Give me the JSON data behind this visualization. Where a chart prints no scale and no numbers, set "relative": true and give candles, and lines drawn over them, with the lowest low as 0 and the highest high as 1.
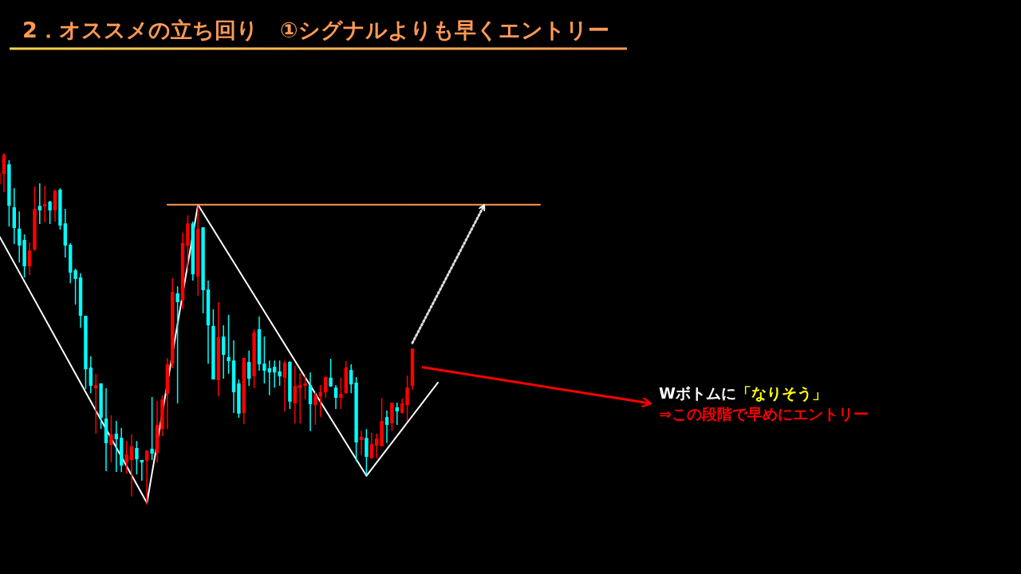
{
  "chart_data": {
    "type": "candlestick",
    "title": "2．オススメの立ち回り　①シグナルよりも早くエントリー",
    "relative": true,
    "categories": [
      null,
      null,
      null,
      null,
      null,
      null,
      null,
      null,
      null,
      null,
      null,
      null,
      null,
      null,
      null,
      null,
      null,
      null,
      null,
      null,
      null,
      null,
      null,
      null,
      null,
      null,
      null,
      null,
      null,
      null,
      null,
      null,
      null,
      null,
      null,
      null,
      null,
      null,
      null,
      null,
      null,
      null,
      null,
      null,
      null,
      null,
      null,
      null,
      null,
      null,
      null,
      null,
      null,
      null,
      null,
      null,
      null,
      null,
      null,
      null,
      null,
      null,
      null,
      null,
      null,
      null,
      null,
      null,
      null,
      null,
      null,
      null,
      null,
      null,
      null,
      null,
      null,
      null,
      null,
      null,
      null,
      null,
      null,
      null,
      null,
      null,
      null,
      null,
      null,
      null,
      null,
      null,
      null,
      null,
      null,
      null,
      null,
      null,
      null,
      null,
      null,
      null,
      null,
      null,
      null,
      null,
      null
    ],
    "ohlc": [
      [
        0.912,
        0.948,
        0.909,
        0.943
      ],
      [
        0.941,
        1,
        0.889,
        0.995
      ],
      [
        0.968,
        0.98,
        0.791,
        0.85
      ],
      [
        0.846,
        0.9,
        0.741,
        0.787
      ],
      [
        0.785,
        0.834,
        0.689,
        0.737
      ],
      [
        0.753,
        0.769,
        0.646,
        0.678
      ],
      [
        0.678,
        0.746,
        0.653,
        0.723
      ],
      [
        0.726,
        0.905,
        0.721,
        0.841
      ],
      [
        0.85,
        0.914,
        0.798,
        0.837
      ],
      [
        0.848,
        0.907,
        0.803,
        0.855
      ],
      [
        0.862,
        0.864,
        0.798,
        0.837
      ],
      [
        0.837,
        0.896,
        0.805,
        0.893
      ],
      [
        0.896,
        0.9,
        0.782,
        0.794
      ],
      [
        0.8,
        0.841,
        0.703,
        0.737
      ],
      [
        0.739,
        0.744,
        0.63,
        0.66
      ],
      [
        0.667,
        0.671,
        0.569,
        0.642
      ],
      [
        0.646,
        0.658,
        0.503,
        0.537
      ],
      [
        0.537,
        0.537,
        0.329,
        0.385
      ],
      [
        0.39,
        0.422,
        0.317,
        0.338
      ],
      [
        0.331,
        0.372,
        0.202,
        0.34
      ],
      [
        0.345,
        0.345,
        0.215,
        0.247
      ],
      [
        0.245,
        0.331,
        0.095,
        0.175
      ],
      [
        0.17,
        0.254,
        0.12,
        0.2
      ],
      [
        0.202,
        0.238,
        0.093,
        0.186
      ],
      [
        0.19,
        0.218,
        0.093,
        0.111
      ],
      [
        0.12,
        0.181,
        0.088,
        0.143
      ],
      [
        0.127,
        0.2,
        0.023,
        0.166
      ],
      [
        0.161,
        0.181,
        0.086,
        0.129
      ],
      [
        0.127,
        0.127,
        0.068,
        0.12
      ],
      [
        0.125,
        0.154,
        0,
        0.154
      ],
      [
        0.159,
        0.306,
        0.127,
        0.145
      ],
      [
        0.147,
        0.295,
        0.12,
        0.227
      ],
      [
        0.215,
        0.311,
        0.195,
        0.299
      ],
      [
        0.315,
        0.417,
        0.215,
        0.399
      ],
      [
        0.399,
        0.644,
        0.388,
        0.605
      ],
      [
        0.601,
        0.621,
        0.288,
        0.576
      ],
      [
        0.581,
        0.773,
        0.556,
        0.744
      ],
      [
        0.737,
        0.823,
        0.667,
        0.8
      ],
      [
        0.8,
        0.805,
        0.637,
        0.655
      ],
      [
        0.649,
        0.85,
        0.594,
        0.785
      ],
      [
        0.789,
        0.789,
        0.544,
        0.61
      ],
      [
        0.612,
        0.637,
        0.401,
        0.51
      ],
      [
        0.508,
        0.556,
        0.356,
        0.356
      ],
      [
        0.354,
        0.576,
        0.308,
        0.476
      ],
      [
        0.478,
        0.51,
        0.358,
        0.426
      ],
      [
        0.42,
        0.54,
        0.372,
        0.408
      ],
      [
        0.41,
        0.467,
        0.261,
        0.32
      ],
      [
        0.345,
        0.356,
        0.247,
        0.259
      ],
      [
        0.261,
        0.417,
        0.229,
        0.417
      ],
      [
        0.406,
        0.438,
        0.338,
        0.358
      ],
      [
        0.365,
        0.499,
        0.331,
        0.49
      ],
      [
        0.499,
        0.535,
        0.381,
        0.399
      ],
      [
        0.401,
        0.478,
        0.345,
        0.381
      ],
      [
        0.388,
        0.41,
        0.311,
        0.376
      ],
      [
        0.392,
        0.41,
        0.333,
        0.376
      ],
      [
        0.379,
        0.41,
        0.338,
        0.365
      ],
      [
        0.361,
        0.41,
        0.265,
        0.404
      ],
      [
        0.406,
        0.408,
        0.272,
        0.293
      ],
      [
        0.288,
        0.395,
        0.231,
        0.338
      ],
      [
        0.331,
        0.374,
        0.231,
        0.34
      ],
      [
        0.338,
        0.37,
        0.299,
        0.345
      ],
      [
        0.34,
        0.376,
        0.209,
        0.286
      ],
      [
        0.283,
        0.322,
        0.227,
        0.311
      ],
      [
        0.308,
        0.34,
        0.249,
        0.32
      ],
      [
        0.32,
        0.365,
        0.304,
        0.363
      ],
      [
        0.361,
        0.415,
        0.336,
        0.336
      ],
      [
        0.333,
        0.34,
        0.272,
        0.304
      ],
      [
        0.304,
        0.361,
        0.272,
        0.315
      ],
      [
        0.317,
        0.408,
        0.315,
        0.39
      ],
      [
        0.383,
        0.399,
        0.317,
        0.342
      ],
      [
        0.347,
        0.363,
        0.122,
        0.177
      ],
      [
        0.184,
        0.211,
        0.141,
        0.193
      ],
      [
        0.19,
        0.215,
        0.084,
        0.136
      ],
      [
        0.132,
        0.204,
        0.132,
        0.172
      ],
      [
        0.168,
        0.202,
        0.132,
        0.188
      ],
      [
        0.166,
        0.304,
        0.166,
        0.238
      ],
      [
        0.249,
        0.268,
        0.175,
        0.227
      ],
      [
        0.231,
        0.29,
        0.211,
        0.29
      ],
      [
        0.277,
        0.29,
        0.227,
        0.265
      ],
      [
        0.261,
        0.302,
        0.259,
        0.288
      ],
      [
        0.283,
        0.367,
        0.238,
        0.333
      ],
      [
        0.338,
        0.444,
        0.327,
        0.444
      ],
      null,
      null,
      null,
      null,
      null,
      null,
      null,
      null,
      null,
      null,
      null,
      null,
      null,
      null,
      null,
      null,
      null,
      null,
      null,
      null,
      null,
      null,
      null,
      null,
      null
    ],
    "colors": [
      "#ff0000",
      "#ff0000",
      "#00ffff",
      "#00ffff",
      "#00ffff",
      "#00ffff",
      "#ff0000",
      "#ff0000",
      "#00ffff",
      "#ff0000",
      "#00ffff",
      "#ff0000",
      "#00ffff",
      "#00ffff",
      "#00ffff",
      "#00ffff",
      "#00ffff",
      "#00ffff",
      "#00ffff",
      "#ff0000",
      "#00ffff",
      "#00ffff",
      "#ff0000",
      "#00ffff",
      "#00ffff",
      "#ff0000",
      "#ff0000",
      "#00ffff",
      "#00ffff",
      "#ff0000",
      "#00ffff",
      "#ff0000",
      "#ff0000",
      "#ff0000",
      "#ff0000",
      "#00ffff",
      "#ff0000",
      "#ff0000",
      "#00ffff",
      "#ff0000",
      "#00ffff",
      "#00ffff",
      "#00ffff",
      "#ff0000",
      "#00ffff",
      "#00ffff",
      "#00ffff",
      "#00ffff",
      "#ff0000",
      "#00ffff",
      "#ff0000",
      "#00ffff",
      "#00ffff",
      "#00ffff",
      "#00ffff",
      "#00ffff",
      "#ff0000",
      "#00ffff",
      "#ff0000",
      "#ff0000",
      "#ff0000",
      "#00ffff",
      "#ff0000",
      "#ff0000",
      "#ff0000",
      "#00ffff",
      "#00ffff",
      "#ff0000",
      "#ff0000",
      "#00ffff",
      "#00ffff",
      "#ff0000",
      "#00ffff",
      "#ff0000",
      "#ff0000",
      "#ff0000",
      "#00ffff",
      "#ff0000",
      "#00ffff",
      "#ff0000",
      "#ff0000",
      "#ff0000",
      null,
      null,
      null,
      null,
      null,
      null,
      null,
      null,
      null,
      null,
      null,
      null,
      null,
      null,
      null,
      null,
      null,
      null,
      null,
      null,
      null,
      null,
      null,
      null,
      null
    ],
    "series": [
      {
        "type": "line",
        "color": "#ffffff",
        "values": [
          0.766,
          null,
          null,
          null,
          null,
          null,
          null,
          null,
          null,
          null,
          null,
          null,
          null,
          null,
          null,
          null,
          null,
          null,
          null,
          null,
          null,
          null,
          null,
          null,
          null,
          null,
          null,
          null,
          null,
          0.005,
          null,
          null,
          null,
          null,
          null,
          null,
          null,
          null,
          null,
          0.853,
          null,
          null,
          null,
          null,
          null,
          null,
          null,
          null,
          null,
          null,
          null,
          null,
          null,
          null,
          null,
          null,
          null,
          null,
          null,
          null,
          null,
          null,
          null,
          null,
          null,
          null,
          null,
          null,
          null,
          null,
          null,
          null,
          0.082,
          null,
          null,
          null,
          null,
          null,
          null,
          null,
          null,
          null,
          null,
          null,
          null,
          null,
          0.347,
          null,
          null,
          null,
          null,
          null,
          null,
          null,
          null,
          null,
          null,
          null,
          null,
          null,
          null,
          null,
          null,
          null,
          null,
          null,
          null
        ]
      },
      {
        "type": "line",
        "color": "#ff9955",
        "values": [
          null,
          null,
          null,
          null,
          null,
          null,
          null,
          null,
          null,
          null,
          null,
          null,
          null,
          null,
          null,
          null,
          null,
          null,
          null,
          null,
          null,
          null,
          null,
          null,
          null,
          null,
          null,
          null,
          null,
          null,
          null,
          null,
          null,
          0.853,
          null,
          null,
          null,
          null,
          null,
          null,
          null,
          null,
          null,
          null,
          null,
          null,
          null,
          null,
          null,
          null,
          null,
          null,
          null,
          null,
          null,
          null,
          null,
          null,
          null,
          null,
          null,
          null,
          null,
          null,
          null,
          null,
          null,
          null,
          null,
          null,
          null,
          null,
          null,
          null,
          null,
          null,
          null,
          null,
          null,
          null,
          null,
          null,
          null,
          null,
          null,
          null,
          null,
          null,
          null,
          null,
          null,
          null,
          null,
          null,
          null,
          null,
          null,
          null,
          null,
          null,
          null,
          null,
          null,
          null,
          null,
          null,
          0.853
        ]
      },
      {
        "type": "line",
        "color": "#dddddd",
        "line_style": "dotted",
        "values": [
          null,
          null,
          null,
          null,
          null,
          null,
          null,
          null,
          null,
          null,
          null,
          null,
          null,
          null,
          null,
          null,
          null,
          null,
          null,
          null,
          null,
          null,
          null,
          null,
          null,
          null,
          null,
          null,
          null,
          null,
          null,
          null,
          null,
          null,
          null,
          null,
          null,
          null,
          null,
          null,
          null,
          null,
          null,
          null,
          null,
          null,
          null,
          null,
          null,
          null,
          null,
          null,
          null,
          null,
          null,
          null,
          null,
          null,
          null,
          null,
          null,
          null,
          null,
          null,
          null,
          null,
          null,
          null,
          null,
          null,
          null,
          null,
          null,
          null,
          null,
          null,
          null,
          null,
          null,
          null,
          null,
          0.46,
          null,
          null,
          null,
          null,
          null,
          null,
          null,
          null,
          null,
          null,
          null,
          null,
          null,
          0.85,
          null,
          null,
          null,
          null,
          null,
          null,
          null,
          null,
          null,
          null,
          null
        ]
      }
    ],
    "annotations": [
      "Wボトムに",
      "「なりそう」",
      "⇒この段階で早めにエントリー"
    ]
  }
}
